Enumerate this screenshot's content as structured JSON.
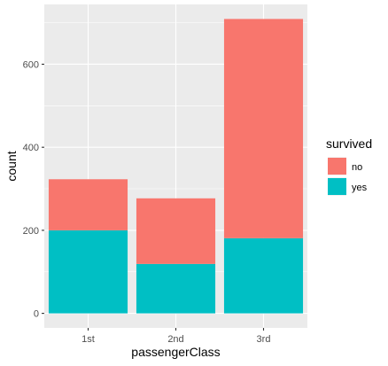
{
  "chart_data": {
    "type": "bar",
    "stacked": true,
    "categories": [
      "1st",
      "2nd",
      "3rd"
    ],
    "series": [
      {
        "name": "no",
        "values": [
          123,
          158,
          528
        ],
        "color": "#F8766D"
      },
      {
        "name": "yes",
        "values": [
          200,
          119,
          181
        ],
        "color": "#00BFC4"
      }
    ],
    "xlabel": "passengerClass",
    "ylabel": "count",
    "ylim": [
      -35,
      744
    ],
    "yticks": [
      0,
      200,
      400,
      600
    ],
    "legend": {
      "title": "survived",
      "position": "right"
    },
    "grid": true,
    "panel_background": "#EBEBEB",
    "grid_color": "#FFFFFF"
  }
}
